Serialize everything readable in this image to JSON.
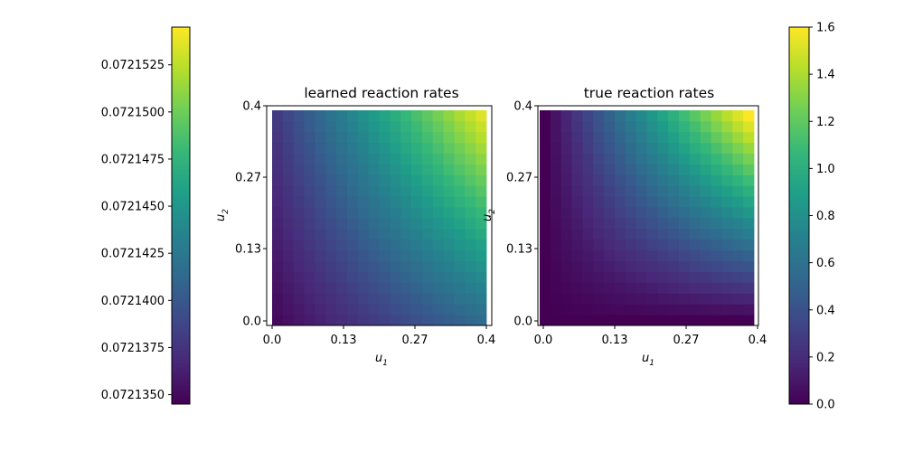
{
  "chart_data": [
    {
      "type": "heatmap",
      "title": "learned reaction rates",
      "xlabel": "u1",
      "ylabel": "u2",
      "x_ticks": [
        "0.0",
        "0.13",
        "0.27",
        "0.4"
      ],
      "y_ticks": [
        "0.0",
        "0.13",
        "0.27",
        "0.4"
      ],
      "xlim": [
        0,
        0.4
      ],
      "ylim": [
        0,
        0.4
      ],
      "grid_size": 20,
      "value_range": [
        0.072135,
        0.0721535
      ],
      "value_model": "approximately c0 + c1*u1 + c2*u2 + c3*u1*u2, rising from about 0.072135 at the lower-left corner to about 0.0721535 at the upper-right corner",
      "colormap": "viridis",
      "colorbar": {
        "side": "left",
        "range": [
          0.0721345,
          0.0721545
        ],
        "ticks": [
          0.072135,
          0.0721375,
          0.07214,
          0.0721425,
          0.072145,
          0.0721475,
          0.07215,
          0.0721525
        ],
        "tick_labels": [
          "0.0721350",
          "0.0721375",
          "0.0721400",
          "0.0721425",
          "0.0721450",
          "0.0721475",
          "0.0721500",
          "0.0721525"
        ]
      }
    },
    {
      "type": "heatmap",
      "title": "true reaction rates",
      "xlabel": "u1",
      "ylabel": "u2",
      "x_ticks": [
        "0.0",
        "0.13",
        "0.27",
        "0.4"
      ],
      "y_ticks": [
        "0.0",
        "0.13",
        "0.27",
        "0.4"
      ],
      "xlim": [
        0,
        0.4
      ],
      "ylim": [
        0,
        0.4
      ],
      "grid_size": 20,
      "value_range": [
        0,
        1.6
      ],
      "value_model": "approximately 10 * u1 * u2, from 0 at the lower-left corner to about 1.6 at the upper-right corner",
      "colormap": "viridis",
      "colorbar": {
        "side": "right",
        "range": [
          0,
          1.6
        ],
        "ticks": [
          0,
          0.2,
          0.4,
          0.6,
          0.8,
          1.0,
          1.2,
          1.4,
          1.6
        ],
        "tick_labels": [
          "0.0",
          "0.2",
          "0.4",
          "0.6",
          "0.8",
          "1.0",
          "1.2",
          "1.4",
          "1.6"
        ]
      }
    }
  ],
  "colors": {
    "viridis_stops": [
      "#440154",
      "#482878",
      "#3e4989",
      "#31688e",
      "#26828e",
      "#1f9e89",
      "#35b779",
      "#6ece58",
      "#b5de2b",
      "#fde725"
    ]
  }
}
